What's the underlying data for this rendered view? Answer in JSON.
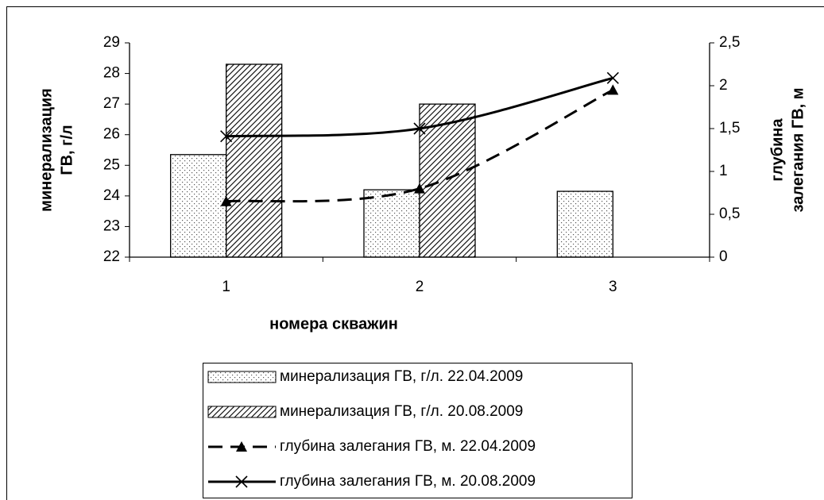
{
  "chart_data": {
    "type": "bar_line",
    "xlabel": "номера скважин",
    "ylabel": [
      "минерализация",
      "ГВ, г/л"
    ],
    "y2label": [
      "глубина",
      "залегания ГВ, м"
    ],
    "categories": [
      "1",
      "2",
      "3"
    ],
    "ylim": [
      22,
      29
    ],
    "yticks": [
      22,
      23,
      24,
      25,
      26,
      27,
      28,
      29
    ],
    "y2lim": [
      0,
      2.5
    ],
    "y2ticks": [
      0,
      {
        "value": 0.5,
        "label": "0,5"
      },
      1,
      {
        "value": 1.5,
        "label": "1,5"
      },
      2,
      {
        "value": 2.5,
        "label": "2,5"
      }
    ],
    "series": [
      {
        "name": "минерализация ГВ, г/л. 22.04.2009",
        "type": "bar",
        "pattern": "dots",
        "color": "#000000",
        "values": [
          25.35,
          24.2,
          24.15
        ]
      },
      {
        "name": "минерализация ГВ, г/л. 20.08.2009",
        "type": "bar",
        "pattern": "hatch",
        "color": "#000000",
        "values": [
          28.3,
          27.0,
          null
        ]
      },
      {
        "name": "глубина залегания ГВ, м. 22.04.2009",
        "type": "line",
        "axis": "y2",
        "style": "dashed",
        "marker": "triangle",
        "color": "#000000",
        "values": [
          0.65,
          0.8,
          1.95
        ]
      },
      {
        "name": "глубина залегания ГВ, м. 20.08.2009",
        "type": "line",
        "axis": "y2",
        "style": "solid",
        "marker": "x",
        "color": "#000000",
        "values": [
          1.41,
          1.5,
          2.09
        ]
      }
    ]
  }
}
